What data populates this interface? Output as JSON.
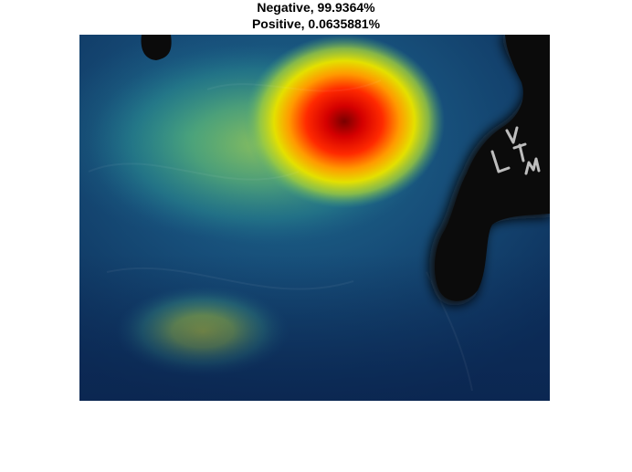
{
  "figure": {
    "title_lines": [
      "Negative, 99.9364%",
      "Positive, 0.0635881%"
    ]
  },
  "image_overlay": {
    "colormap": "parula-jet heat overlay",
    "background_color": "#0d2d5a",
    "hotspot_colors": [
      "#8b0000",
      "#ff1a00",
      "#e8e400",
      "#7bc25a",
      "#2a9a90",
      "#1d5a86"
    ],
    "mask_color": "#0b0b0b",
    "watermark_text": "L V T M",
    "icons": [
      "hand-drawn-letters-icon"
    ]
  }
}
